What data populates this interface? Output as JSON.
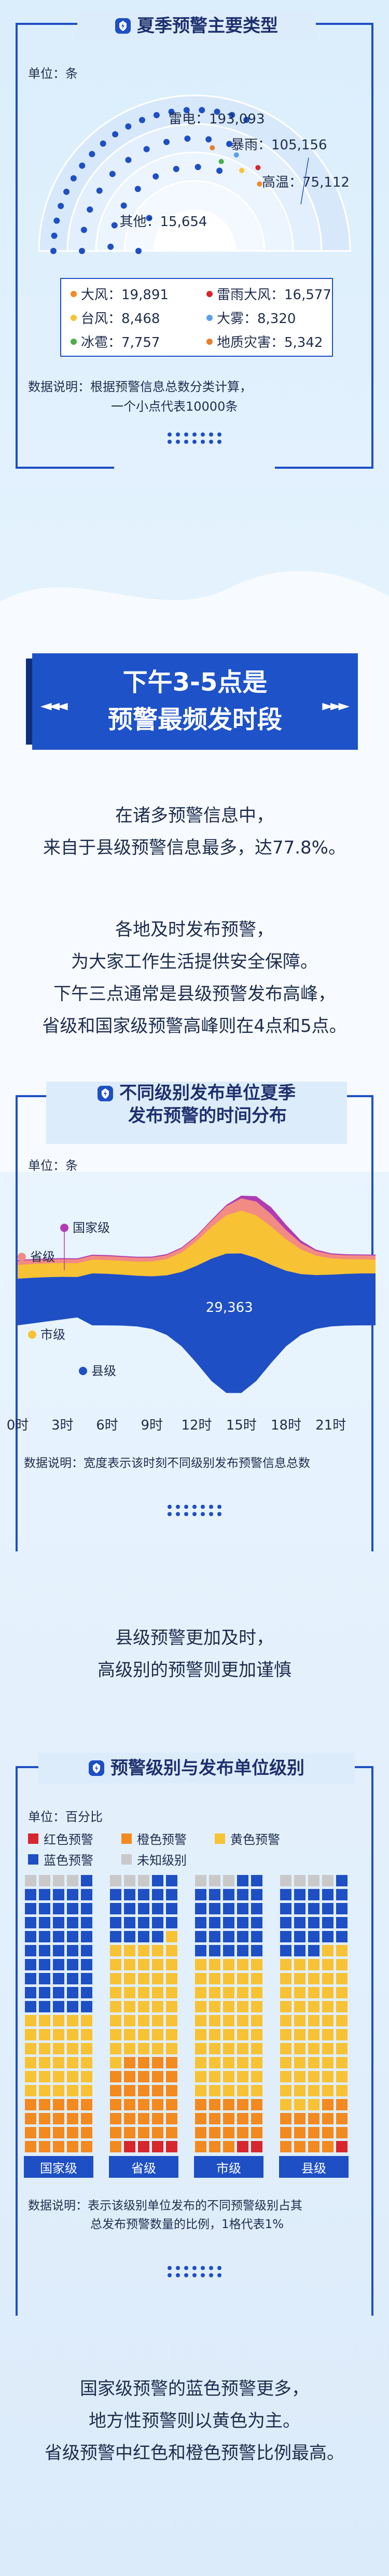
{
  "section1": {
    "title": "夏季预警主要类型",
    "unit": "单位：条",
    "note_line1": "数据说明：根据预警信息总数分类计算，",
    "note_line2": "一个小点代表10000条"
  },
  "section2": {
    "banner_line1": "下午3-5点是",
    "banner_line2": "预警最频发时段",
    "arrows_left": "◄◄◄",
    "arrows_right": "►►►",
    "para1": [
      "在诸多预警信息中，",
      "来自于县级预警信息最多，达77.8%。"
    ],
    "para2": [
      "各地及时发布预警，",
      "为大家工作生活提供安全保障。",
      "下午三点通常是县级预警发布高峰，",
      "省级和国家级预警高峰则在4点和5点。"
    ]
  },
  "section3": {
    "title_line1": "不同级别发布单位夏季",
    "title_line2": "发布预警的时间分布",
    "unit": "单位：条",
    "note": "数据说明：宽度表示该时刻不同级别发布预警信息总数",
    "para": [
      "县级预警更加及时，",
      "高级别的预警则更加谨慎"
    ]
  },
  "section4": {
    "title": "预警级别与发布单位级别",
    "unit": "单位：百分比",
    "note_line1": "数据说明：表示该级别单位发布的不同预警级别占其",
    "note_line2": "总发布预警数量的比例，1格代表1%",
    "para": [
      "国家级预警的蓝色预警更多，",
      "地方性预警则以黄色为主。",
      "省级预警中红色和橙色预警比例最高。"
    ]
  },
  "colors": {
    "blue": "#1e4fc4",
    "yellow": "#f7c234",
    "orange": "#f38a1f",
    "red": "#d7262e",
    "purple": "#b03cb5",
    "grey": "#c9c9c9",
    "accent": "#f08a2b"
  },
  "chart_data": [
    {
      "type": "dot-radial",
      "title": "夏季预警主要类型",
      "unit": "条",
      "main_series": [
        {
          "name": "雷电",
          "value": 193093
        },
        {
          "name": "暴雨",
          "value": 105156
        },
        {
          "name": "高温",
          "value": 75112
        },
        {
          "name": "其他",
          "value": 15654
        }
      ],
      "other_breakdown": [
        {
          "name": "大风",
          "value": 19891,
          "color": "#f08a2b"
        },
        {
          "name": "雷雨大风",
          "value": 16577,
          "color": "#d7262e"
        },
        {
          "name": "台风",
          "value": 8468,
          "color": "#f7c234"
        },
        {
          "name": "大雾",
          "value": 8320,
          "color": "#5aa0f0"
        },
        {
          "name": "冰雹",
          "value": 7757,
          "color": "#4cae4c"
        },
        {
          "name": "地质灾害",
          "value": 5342,
          "color": "#e67f2c"
        }
      ]
    },
    {
      "type": "streamgraph",
      "unit": "条",
      "x_ticks": [
        "0时",
        "3时",
        "6时",
        "9时",
        "12时",
        "15时",
        "18时",
        "21时"
      ],
      "series": [
        {
          "name": "国家级",
          "color": "#b03cb5"
        },
        {
          "name": "省级",
          "color": "#f28b82"
        },
        {
          "name": "市级",
          "color": "#f7c234"
        },
        {
          "name": "县级",
          "color": "#1e4fc4"
        }
      ],
      "peak_label": "29,363"
    },
    {
      "type": "waffle",
      "unit": "百分比",
      "legend": [
        {
          "name": "红色预警",
          "color": "#d7262e"
        },
        {
          "name": "橙色预警",
          "color": "#f38a1f"
        },
        {
          "name": "黄色预警",
          "color": "#f7c234"
        },
        {
          "name": "蓝色预警",
          "color": "#1e4fc4"
        },
        {
          "name": "未知级别",
          "color": "#c9c9c9"
        }
      ],
      "groups": [
        {
          "name": "国家级",
          "red": 0,
          "orange": 20,
          "yellow": 30,
          "blue": 46,
          "unknown": 4
        },
        {
          "name": "省级",
          "red": 4,
          "orange": 30,
          "yellow": 42,
          "blue": 21,
          "unknown": 3
        },
        {
          "name": "市级",
          "red": 2,
          "orange": 18,
          "yellow": 50,
          "blue": 27,
          "unknown": 3
        },
        {
          "name": "县级",
          "red": 1,
          "orange": 16,
          "yellow": 55,
          "blue": 24,
          "unknown": 4
        }
      ]
    }
  ]
}
